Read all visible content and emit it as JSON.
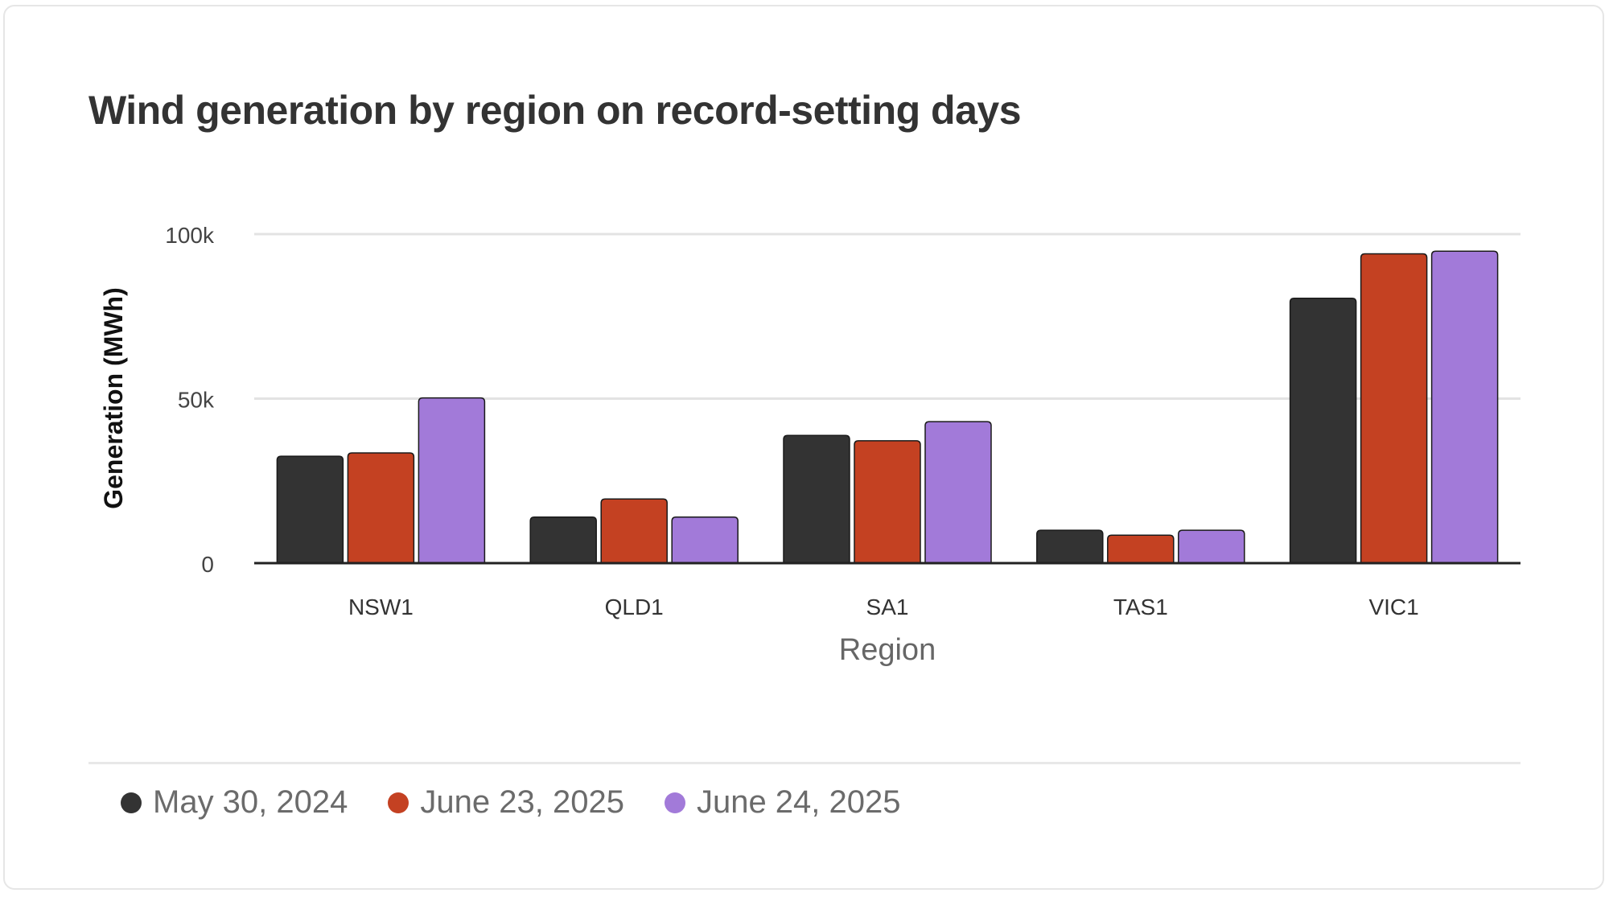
{
  "chart_data": {
    "type": "bar",
    "title": "Wind generation by region on record-setting days",
    "xlabel": "Region",
    "ylabel": "Generation (MWh)",
    "categories": [
      "NSW1",
      "QLD1",
      "SA1",
      "TAS1",
      "VIC1"
    ],
    "series": [
      {
        "name": "May 30, 2024",
        "color": "#333333",
        "values": [
          32500,
          14000,
          38800,
          10000,
          80500
        ]
      },
      {
        "name": "June 23, 2025",
        "color": "#c44122",
        "values": [
          33500,
          19500,
          37200,
          8500,
          94000
        ]
      },
      {
        "name": "June 24, 2025",
        "color": "#a27ad9",
        "values": [
          50200,
          14000,
          43000,
          10000,
          94800
        ]
      }
    ],
    "ylim": [
      0,
      100000
    ],
    "yticks": [
      0,
      50000,
      100000
    ],
    "ytick_labels": [
      "0",
      "50k",
      "100k"
    ],
    "grid": true,
    "legend_position": "bottom-left"
  }
}
